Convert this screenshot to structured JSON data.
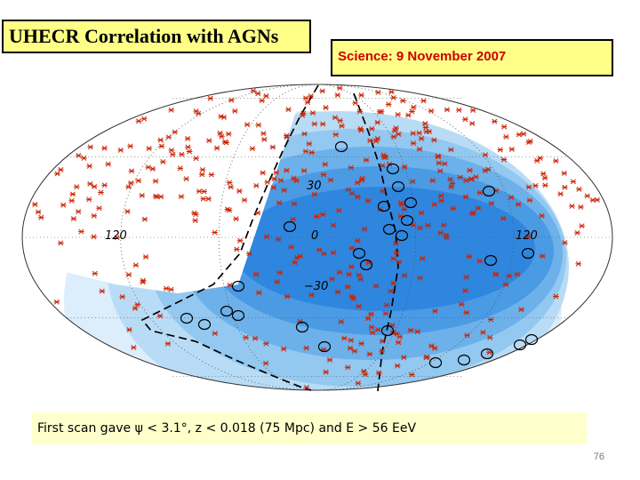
{
  "slide": {
    "title": "UHECR Correlation with AGNs",
    "source": "Science: 9 November 2007",
    "caption": "First scan gave ψ < 3.1°, z < 0.018 (75 Mpc) and E > 56 EeV",
    "page_number": "76"
  },
  "skymap": {
    "grid_labels": {
      "lat_plus30": "30",
      "lat_zero": "0",
      "lat_minus30": "−30",
      "lon_left": "120",
      "lon_right": "120"
    },
    "colors": {
      "exposure_levels": [
        "#dcedfb",
        "#b9dcf6",
        "#93c8f0",
        "#6db1ea",
        "#4a9ae4",
        "#2e86de"
      ],
      "agn_marker": "#cc2200",
      "event_circle": "#000000",
      "boundary": "#000000"
    },
    "agn_count_shown": 420,
    "event_count_shown": 27
  }
}
